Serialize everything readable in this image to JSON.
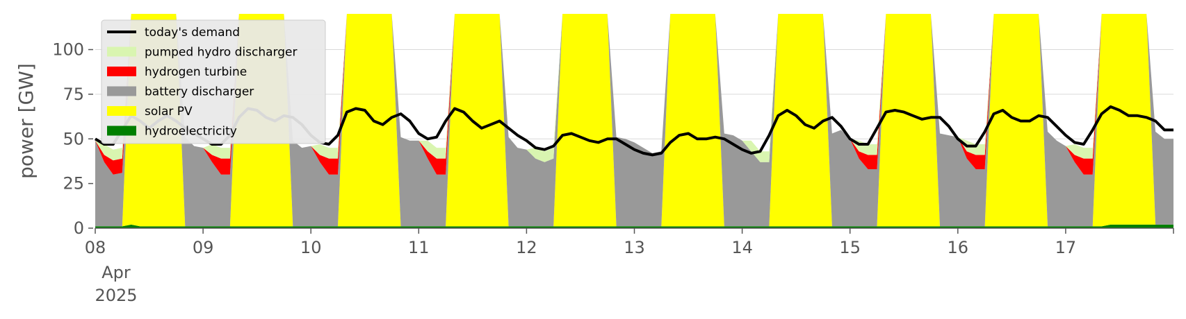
{
  "chart_data": {
    "type": "area",
    "title": "",
    "ylabel": "power [GW]",
    "ylim": [
      0,
      120
    ],
    "yticks": [
      0,
      25,
      50,
      75,
      100
    ],
    "xlim": [
      "2025-04-08T00:00",
      "2025-04-17T23:00"
    ],
    "xticks": [
      {
        "date": "2025-04-08",
        "label": "08"
      },
      {
        "date": "2025-04-09",
        "label": "09"
      },
      {
        "date": "2025-04-10",
        "label": "10"
      },
      {
        "date": "2025-04-11",
        "label": "11"
      },
      {
        "date": "2025-04-12",
        "label": "12"
      },
      {
        "date": "2025-04-13",
        "label": "13"
      },
      {
        "date": "2025-04-14",
        "label": "14"
      },
      {
        "date": "2025-04-15",
        "label": "15"
      },
      {
        "date": "2025-04-16",
        "label": "16"
      },
      {
        "date": "2025-04-17",
        "label": "17"
      }
    ],
    "x_sublabels": [
      "Apr",
      "2025"
    ],
    "x_hours": [
      0,
      2,
      4,
      6,
      8,
      10,
      12,
      14,
      16,
      18,
      20,
      22
    ],
    "legend_position": "top-left",
    "colors": {
      "demand": "#000000",
      "pumped_hydro": "#d9f5b0",
      "hydrogen": "#ff0000",
      "battery": "#999999",
      "solar": "#ffff00",
      "hydro": "#007f00",
      "grid": "#d9d9d9",
      "axis": "#555555"
    },
    "series": [
      {
        "key": "hydro",
        "name": "hydroelectricity",
        "days": [
          [
            1,
            1,
            1,
            1,
            2,
            1,
            1,
            1,
            1,
            1,
            1,
            1
          ],
          [
            1,
            1,
            1,
            1,
            1,
            1,
            1,
            1,
            1,
            1,
            1,
            1
          ],
          [
            1,
            1,
            1,
            1,
            1,
            1,
            1,
            1,
            1,
            1,
            1,
            1
          ],
          [
            1,
            1,
            1,
            1,
            1,
            1,
            1,
            1,
            1,
            1,
            1,
            1
          ],
          [
            1,
            1,
            1,
            1,
            1,
            1,
            1,
            1,
            1,
            1,
            1,
            1
          ],
          [
            1,
            1,
            1,
            1,
            1,
            1,
            1,
            1,
            1,
            1,
            1,
            1
          ],
          [
            1,
            1,
            1,
            1,
            1,
            1,
            1,
            1,
            1,
            1,
            1,
            1
          ],
          [
            1,
            1,
            1,
            1,
            1,
            1,
            1,
            1,
            1,
            1,
            1,
            1
          ],
          [
            1,
            1,
            1,
            1,
            1,
            1,
            1,
            1,
            1,
            1,
            1,
            1
          ],
          [
            1,
            1,
            1,
            1,
            1,
            2,
            2,
            2,
            2,
            2,
            2,
            2
          ]
        ]
      },
      {
        "key": "solar",
        "name": "solar PV",
        "days": [
          [
            0,
            0,
            0,
            0,
            120,
            120,
            120,
            120,
            120,
            120,
            0,
            0
          ],
          [
            0,
            0,
            0,
            0,
            120,
            120,
            120,
            120,
            120,
            120,
            0,
            0
          ],
          [
            0,
            0,
            0,
            0,
            120,
            120,
            120,
            120,
            120,
            120,
            0,
            0
          ],
          [
            0,
            0,
            0,
            0,
            120,
            120,
            120,
            120,
            120,
            120,
            0,
            0
          ],
          [
            0,
            0,
            0,
            0,
            120,
            120,
            120,
            120,
            120,
            120,
            0,
            0
          ],
          [
            0,
            0,
            0,
            0,
            120,
            120,
            120,
            120,
            120,
            120,
            0,
            0
          ],
          [
            0,
            0,
            0,
            0,
            120,
            120,
            120,
            120,
            120,
            120,
            0,
            0
          ],
          [
            0,
            0,
            0,
            0,
            120,
            120,
            120,
            120,
            120,
            120,
            0,
            0
          ],
          [
            0,
            0,
            0,
            0,
            120,
            120,
            120,
            120,
            120,
            120,
            0,
            0
          ],
          [
            0,
            0,
            0,
            0,
            120,
            120,
            120,
            120,
            120,
            120,
            0,
            0
          ]
        ]
      },
      {
        "key": "battery",
        "name": "battery discharger",
        "days": [
          [
            48,
            36,
            29,
            30,
            0,
            0,
            0,
            0,
            0,
            15,
            50,
            45
          ],
          [
            44,
            36,
            29,
            29,
            0,
            0,
            0,
            0,
            0,
            15,
            48,
            44
          ],
          [
            45,
            36,
            29,
            29,
            0,
            0,
            0,
            0,
            0,
            15,
            50,
            48
          ],
          [
            48,
            38,
            29,
            29,
            0,
            0,
            0,
            0,
            0,
            15,
            50,
            44
          ],
          [
            43,
            38,
            36,
            38,
            0,
            0,
            0,
            0,
            0,
            15,
            50,
            49
          ],
          [
            47,
            44,
            41,
            42,
            0,
            0,
            0,
            0,
            0,
            15,
            52,
            51
          ],
          [
            48,
            42,
            36,
            36,
            0,
            0,
            0,
            0,
            0,
            15,
            52,
            54
          ],
          [
            49,
            38,
            32,
            32,
            0,
            0,
            0,
            0,
            0,
            15,
            52,
            51
          ],
          [
            50,
            38,
            32,
            32,
            0,
            0,
            0,
            0,
            0,
            15,
            53,
            48
          ],
          [
            45,
            36,
            29,
            29,
            0,
            0,
            0,
            0,
            0,
            15,
            52,
            48
          ]
        ]
      },
      {
        "key": "hydrogen",
        "name": "hydrogen turbine",
        "days": [
          [
            0,
            4,
            8,
            8,
            0,
            0,
            0,
            0,
            0,
            0,
            0,
            0
          ],
          [
            0,
            4,
            9,
            9,
            0,
            0,
            0,
            0,
            0,
            0,
            0,
            0
          ],
          [
            0,
            4,
            9,
            9,
            0,
            0,
            0,
            0,
            0,
            0,
            0,
            0
          ],
          [
            0,
            4,
            9,
            9,
            0,
            0,
            0,
            0,
            0,
            0,
            0,
            0
          ],
          [
            0,
            0,
            0,
            0,
            0,
            0,
            0,
            0,
            0,
            0,
            0,
            0
          ],
          [
            0,
            0,
            0,
            0,
            0,
            0,
            0,
            0,
            0,
            0,
            0,
            0
          ],
          [
            0,
            0,
            0,
            0,
            0,
            0,
            0,
            0,
            0,
            0,
            0,
            0
          ],
          [
            0,
            4,
            8,
            8,
            0,
            0,
            0,
            0,
            0,
            0,
            0,
            0
          ],
          [
            0,
            4,
            8,
            8,
            0,
            0,
            0,
            0,
            0,
            0,
            0,
            0
          ],
          [
            0,
            4,
            9,
            9,
            0,
            0,
            0,
            0,
            0,
            0,
            0,
            0
          ]
        ]
      },
      {
        "key": "pumped_hydro",
        "name": "pumped hydro discharger",
        "days": [
          [
            0,
            6,
            6,
            6,
            0,
            0,
            0,
            0,
            0,
            0,
            0,
            0
          ],
          [
            0,
            6,
            6,
            6,
            0,
            0,
            0,
            0,
            0,
            0,
            0,
            0
          ],
          [
            0,
            6,
            6,
            6,
            0,
            0,
            0,
            0,
            0,
            0,
            0,
            0
          ],
          [
            0,
            6,
            6,
            6,
            0,
            0,
            0,
            0,
            0,
            0,
            0,
            0
          ],
          [
            0,
            6,
            6,
            6,
            0,
            0,
            0,
            0,
            0,
            0,
            0,
            0
          ],
          [
            0,
            0,
            0,
            0,
            0,
            0,
            0,
            0,
            0,
            0,
            0,
            0
          ],
          [
            0,
            6,
            6,
            6,
            0,
            0,
            0,
            0,
            0,
            0,
            0,
            0
          ],
          [
            0,
            6,
            6,
            6,
            0,
            0,
            0,
            0,
            0,
            0,
            0,
            0
          ],
          [
            0,
            6,
            6,
            6,
            0,
            0,
            0,
            0,
            0,
            0,
            0,
            0
          ],
          [
            0,
            6,
            6,
            6,
            0,
            0,
            0,
            0,
            0,
            0,
            0,
            0
          ]
        ]
      }
    ],
    "demand": {
      "name": "today's demand",
      "days": [
        [
          50,
          47,
          47,
          55,
          63,
          60,
          56,
          60,
          63,
          60,
          56,
          53
        ],
        [
          50,
          47,
          47,
          52,
          62,
          67,
          66,
          62,
          60,
          63,
          62,
          58
        ],
        [
          52,
          48,
          47,
          52,
          65,
          67,
          66,
          60,
          58,
          62,
          64,
          60
        ],
        [
          53,
          50,
          51,
          60,
          67,
          65,
          60,
          56,
          58,
          60,
          56,
          52
        ],
        [
          49,
          45,
          44,
          46,
          52,
          53,
          51,
          49,
          48,
          50,
          50,
          47
        ],
        [
          44,
          42,
          41,
          42,
          48,
          52,
          53,
          50,
          50,
          51,
          50,
          47
        ],
        [
          44,
          42,
          43,
          52,
          63,
          66,
          63,
          58,
          56,
          60,
          62,
          57
        ],
        [
          50,
          47,
          47,
          56,
          65,
          66,
          65,
          63,
          61,
          62,
          62,
          57
        ],
        [
          50,
          46,
          46,
          54,
          64,
          66,
          62,
          60,
          60,
          63,
          62,
          57
        ],
        [
          52,
          48,
          47,
          55,
          64,
          68,
          66,
          63,
          63,
          62,
          60,
          55
        ]
      ]
    }
  }
}
